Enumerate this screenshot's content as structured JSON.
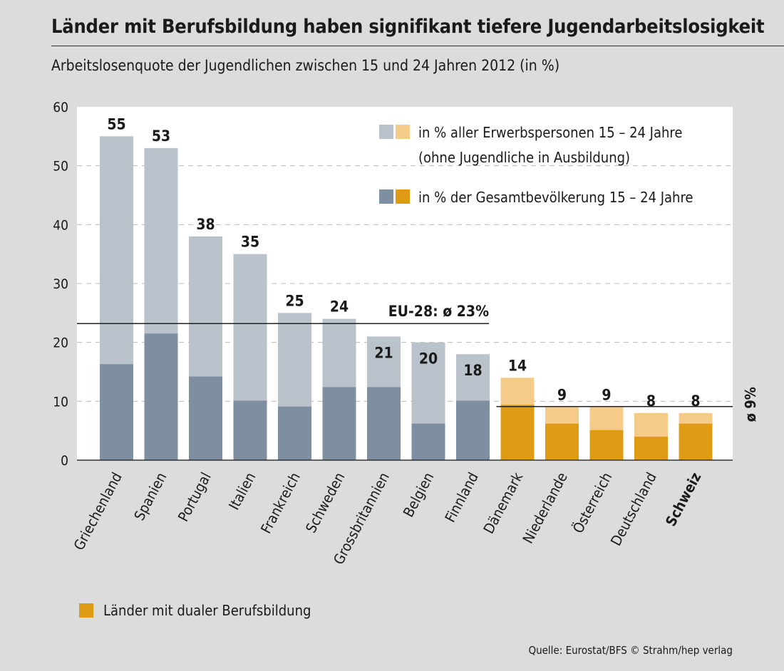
{
  "title": "Länder mit Berufsbildung haben signifikant tiefere Jugendarbeitslosigkeit",
  "subtitle": "Arbeitslosenquote der Jugendlichen zwischen 15 und 24 Jahren 2012 (in %)",
  "source": "Quelle: Eurostat/BFS  © Strahm/hep verlag",
  "colors": {
    "grey_light": "#bac2cc",
    "grey_dark": "#7d8fa0",
    "orange_light": "#f5cb8a",
    "orange_dark": "#e09b15",
    "plot_bg": "#ffffff",
    "page_bg": "#dcdcdc"
  },
  "chart_data": {
    "type": "bar",
    "title": "Länder mit Berufsbildung haben signifikant tiefere Jugendarbeitslosigkeit",
    "ylabel": "",
    "ylim": [
      0,
      60
    ],
    "yticks": [
      0,
      10,
      20,
      30,
      40,
      50,
      60
    ],
    "grid": true,
    "categories": [
      "Griechenland",
      "Spanien",
      "Portugal",
      "Italien",
      "Frankreich",
      "Schweden",
      "Grossbritannien",
      "Belgien",
      "Finnland",
      "Dänemark",
      "Niederlande",
      "Österreich",
      "Deutschland",
      "Schweiz"
    ],
    "dual_system": [
      false,
      false,
      false,
      false,
      false,
      false,
      false,
      false,
      false,
      true,
      true,
      true,
      true,
      true
    ],
    "highlight": [
      false,
      false,
      false,
      false,
      false,
      false,
      false,
      false,
      false,
      false,
      false,
      false,
      false,
      true
    ],
    "series": [
      {
        "name": "in % aller Erwerbspersonen 15 – 24 Jahre (ohne Jugendliche in Ausbildung)",
        "values": [
          55,
          53,
          38,
          35,
          25,
          24,
          21,
          20,
          18,
          14,
          9,
          9,
          8,
          8
        ],
        "labels": [
          "55",
          "53",
          "38",
          "35",
          "25",
          "24",
          "21",
          "20",
          "18",
          "14",
          "9",
          "9",
          "8",
          "8"
        ]
      },
      {
        "name": "in % der Gesamtbevölkerung 15 – 24 Jahre",
        "values": [
          16.3,
          21.5,
          14.2,
          10.1,
          9.1,
          12.4,
          12.4,
          6.2,
          10.1,
          9.4,
          6.2,
          5.1,
          4.0,
          6.2
        ]
      }
    ],
    "legend": {
      "entry1_line1": "in % aller Erwerbspersonen 15 – 24 Jahre",
      "entry1_line2": "(ohne Jugendliche in Ausbildung)",
      "entry2": "in % der Gesamtbevölkerung 15 – 24 Jahre",
      "position": "top-right"
    },
    "reference_lines": [
      {
        "label": "EU-28: ø 23%",
        "value": 23.2,
        "span": "all"
      },
      {
        "label": "ø 9%",
        "value": 9.1,
        "span": "dual"
      }
    ],
    "legend_dual": "Länder mit dualer Berufsbildung"
  }
}
